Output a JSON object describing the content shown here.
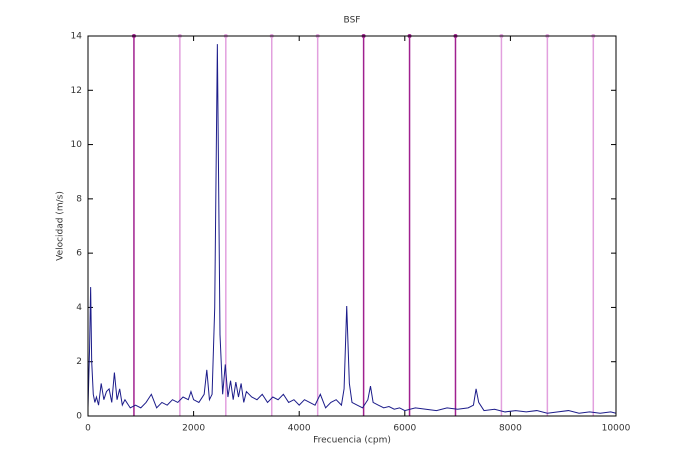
{
  "chart_data": {
    "type": "line",
    "title": "BSF",
    "x_label": "Frecuencia (cpm)",
    "y_label": "Velocidad (m/s)",
    "xlim": [
      0,
      10000
    ],
    "ylim": [
      0,
      14
    ],
    "xticks": [
      0,
      2000,
      4000,
      6000,
      8000,
      10000
    ],
    "yticks": [
      0,
      2,
      4,
      6,
      8,
      10,
      12,
      14
    ],
    "x": [
      0,
      30,
      50,
      70,
      100,
      130,
      160,
      200,
      250,
      300,
      350,
      400,
      450,
      500,
      550,
      600,
      650,
      700,
      800,
      900,
      1000,
      1100,
      1200,
      1300,
      1400,
      1500,
      1600,
      1700,
      1800,
      1900,
      1950,
      2000,
      2100,
      2200,
      2250,
      2300,
      2350,
      2400,
      2450,
      2500,
      2550,
      2600,
      2650,
      2700,
      2750,
      2800,
      2850,
      2900,
      2950,
      3000,
      3100,
      3200,
      3300,
      3400,
      3500,
      3600,
      3700,
      3800,
      3900,
      4000,
      4100,
      4200,
      4300,
      4400,
      4500,
      4600,
      4700,
      4800,
      4850,
      4900,
      4950,
      5000,
      5100,
      5200,
      5300,
      5350,
      5400,
      5500,
      5600,
      5700,
      5800,
      5900,
      6000,
      6200,
      6400,
      6600,
      6800,
      7000,
      7200,
      7300,
      7350,
      7400,
      7500,
      7700,
      7900,
      8100,
      8300,
      8500,
      8700,
      8900,
      9100,
      9300,
      9500,
      9700,
      9900,
      10000
    ],
    "series": [
      {
        "name": "BSF",
        "color": "#1c1c8a",
        "values": [
          0.3,
          2.5,
          4.75,
          2.0,
          0.8,
          0.5,
          0.7,
          0.4,
          1.2,
          0.6,
          0.9,
          1.0,
          0.5,
          1.6,
          0.6,
          1.0,
          0.4,
          0.6,
          0.3,
          0.4,
          0.3,
          0.5,
          0.8,
          0.3,
          0.5,
          0.4,
          0.6,
          0.5,
          0.7,
          0.6,
          0.9,
          0.6,
          0.5,
          0.8,
          1.7,
          0.6,
          0.8,
          4.0,
          13.7,
          3.0,
          0.8,
          1.9,
          0.7,
          1.3,
          0.6,
          1.25,
          0.7,
          1.2,
          0.5,
          0.9,
          0.7,
          0.6,
          0.8,
          0.5,
          0.7,
          0.6,
          0.8,
          0.5,
          0.6,
          0.4,
          0.6,
          0.5,
          0.4,
          0.8,
          0.3,
          0.5,
          0.6,
          0.4,
          1.0,
          4.05,
          1.2,
          0.5,
          0.4,
          0.3,
          0.6,
          1.1,
          0.5,
          0.4,
          0.3,
          0.35,
          0.25,
          0.3,
          0.2,
          0.3,
          0.25,
          0.2,
          0.3,
          0.25,
          0.3,
          0.4,
          1.0,
          0.5,
          0.2,
          0.25,
          0.15,
          0.2,
          0.15,
          0.2,
          0.1,
          0.15,
          0.2,
          0.1,
          0.15,
          0.1,
          0.15,
          0.1
        ]
      }
    ],
    "markers": {
      "values": [
        870,
        1740,
        2610,
        3480,
        4350,
        5220,
        6090,
        6960,
        7830,
        8700,
        9570
      ],
      "colors": [
        "#a0208f",
        "#e2a0de",
        "#e2a0de",
        "#e2a0de",
        "#e2a0de",
        "#a0208f",
        "#a0208f",
        "#a0208f",
        "#e2a0de",
        "#e2a0de",
        "#e2a0de"
      ]
    }
  }
}
